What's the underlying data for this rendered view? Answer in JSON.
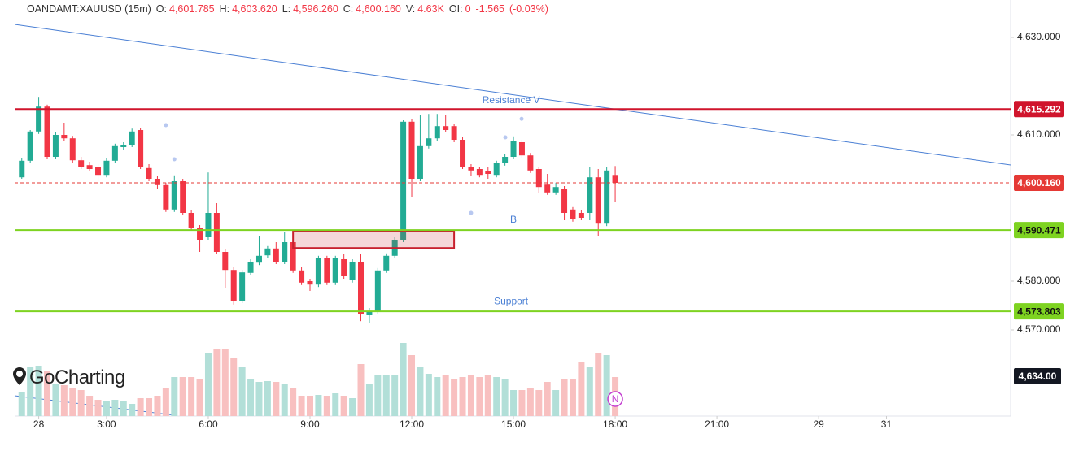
{
  "header": {
    "symbol": "OANDAMT:XAUUSD (15m)",
    "fields": [
      {
        "label": "O:",
        "value": "4,601.785"
      },
      {
        "label": "H:",
        "value": "4,603.620"
      },
      {
        "label": "L:",
        "value": "4,596.260"
      },
      {
        "label": "C:",
        "value": "4,600.160"
      },
      {
        "label": "V:",
        "value": "4.63K"
      },
      {
        "label": "OI:",
        "value": "0"
      }
    ],
    "change": "-1.565",
    "change_pct": "(-0.03%)"
  },
  "logo": "GoCharting",
  "chart_data": {
    "type": "candlestick",
    "x": [
      0.5,
      0.75,
      1,
      1.25,
      1.5,
      1.75,
      2,
      2.25,
      2.5,
      2.75,
      3,
      3.25,
      3.5,
      3.75,
      4,
      4.25,
      4.5,
      4.75,
      5,
      5.25,
      5.5,
      5.75,
      6,
      6.25,
      6.5,
      6.75,
      7,
      7.25,
      7.5,
      7.75,
      8,
      8.25,
      8.5,
      8.75,
      9,
      9.25,
      9.5,
      9.75,
      10,
      10.25,
      10.5,
      10.75,
      11,
      11.25,
      11.5,
      11.75,
      12,
      12.25,
      12.5,
      12.75,
      13,
      13.25,
      13.5,
      13.75,
      14,
      14.25,
      14.5,
      14.75,
      15,
      15.25,
      15.5,
      15.75,
      16,
      16.25,
      16.5,
      16.75,
      17,
      17.25,
      17.5,
      17.75,
      18
    ],
    "open": [
      4601.3,
      4604.7,
      4610.7,
      4615.8,
      4605.5,
      4610.0,
      4609.3,
      4604.8,
      4603.8,
      4603.5,
      4601.8,
      4604.7,
      4607.5,
      4608.0,
      4611.0,
      4603.2,
      4601.0,
      4599.7,
      4594.7,
      4600.5,
      4594.0,
      4591.0,
      4589.0,
      4594.0,
      4586.0,
      4582.3,
      4576.0,
      4581.7,
      4583.8,
      4585.3,
      4586.7,
      4584.0,
      4588.0,
      4582.2,
      4580.0,
      4579.3,
      4584.7,
      4579.7,
      4584.5,
      4580.2,
      4584.0,
      4573.0,
      4573.8,
      4582.2,
      4585.2,
      4588.5,
      4612.7,
      4601.0,
      4607.7,
      4609.3,
      4611.8,
      4611.8,
      4609.0,
      4603.5,
      4603.0,
      4602.5,
      4601.8,
      4604.2,
      4605.5,
      4608.5,
      4605.8,
      4603.0,
      4599.8,
      4598.2,
      4599.0,
      4594.7,
      4594.0,
      4594.0,
      4601.3,
      4591.8,
      4601.785
    ],
    "high": [
      4605.2,
      4611.0,
      4617.8,
      4616.2,
      4610.5,
      4612.5,
      4609.8,
      4605.5,
      4604.5,
      4604.0,
      4605.2,
      4608.2,
      4608.5,
      4611.3,
      4611.5,
      4604.0,
      4601.5,
      4600.2,
      4601.7,
      4601.0,
      4594.5,
      4591.5,
      4602.3,
      4596.0,
      4586.5,
      4583.0,
      4582.3,
      4584.5,
      4589.3,
      4587.2,
      4588.0,
      4590.0,
      4589.5,
      4583.0,
      4580.5,
      4585.2,
      4585.2,
      4585.2,
      4585.5,
      4584.5,
      4585.5,
      4574.5,
      4582.7,
      4585.7,
      4589.0,
      4613.0,
      4613.2,
      4614.0,
      4614.3,
      4614.3,
      4614.0,
      4612.3,
      4609.5,
      4604.0,
      4603.5,
      4603.5,
      4604.7,
      4606.0,
      4609.7,
      4609.0,
      4606.3,
      4603.5,
      4602.0,
      4600.2,
      4599.5,
      4595.2,
      4594.5,
      4603.5,
      4603.0,
      4603.5,
      4603.62
    ],
    "low": [
      4601.0,
      4604.2,
      4610.2,
      4605.0,
      4605.0,
      4608.8,
      4604.3,
      4603.0,
      4602.5,
      4600.5,
      4601.3,
      4604.2,
      4607.0,
      4607.5,
      4603.0,
      4600.5,
      4599.0,
      4594.2,
      4594.2,
      4593.5,
      4590.5,
      4586.0,
      4588.5,
      4585.5,
      4578.5,
      4575.2,
      4575.5,
      4581.2,
      4583.3,
      4584.8,
      4583.5,
      4583.5,
      4581.7,
      4579.2,
      4578.0,
      4578.8,
      4579.2,
      4579.2,
      4580.5,
      4579.7,
      4571.8,
      4571.5,
      4573.3,
      4581.7,
      4584.7,
      4588.0,
      4597.2,
      4600.5,
      4607.2,
      4608.8,
      4610.5,
      4608.5,
      4603.0,
      4601.5,
      4601.3,
      4601.0,
      4601.3,
      4603.7,
      4605.0,
      4605.3,
      4602.2,
      4598.0,
      4597.7,
      4597.7,
      4592.5,
      4592.2,
      4592.5,
      4592.5,
      4589.3,
      4591.3,
      4596.26
    ],
    "close": [
      4604.7,
      4610.7,
      4615.8,
      4605.5,
      4610.0,
      4609.3,
      4604.8,
      4603.5,
      4603.0,
      4601.8,
      4604.7,
      4607.7,
      4608.0,
      4610.7,
      4603.5,
      4601.0,
      4599.7,
      4594.7,
      4600.5,
      4594.0,
      4591.0,
      4588.5,
      4594.0,
      4586.0,
      4582.3,
      4576.0,
      4581.8,
      4584.0,
      4585.2,
      4586.7,
      4584.0,
      4588.0,
      4582.2,
      4579.7,
      4579.3,
      4584.7,
      4579.7,
      4584.7,
      4581.0,
      4584.0,
      4573.2,
      4573.8,
      4582.2,
      4585.2,
      4588.5,
      4612.7,
      4601.0,
      4607.7,
      4609.3,
      4611.8,
      4611.0,
      4609.0,
      4603.5,
      4602.7,
      4601.8,
      4602.0,
      4604.2,
      4605.5,
      4608.8,
      4605.8,
      4602.7,
      4599.3,
      4598.2,
      4599.3,
      4594.0,
      4592.7,
      4593.0,
      4601.3,
      4591.8,
      4602.7,
      4600.16
    ],
    "volume": [
      30,
      60,
      62,
      55,
      40,
      38,
      35,
      32,
      25,
      20,
      18,
      20,
      18,
      15,
      22,
      22,
      25,
      35,
      48,
      48,
      48,
      46,
      78,
      82,
      82,
      72,
      60,
      45,
      42,
      43,
      42,
      40,
      35,
      25,
      25,
      26,
      25,
      28,
      25,
      22,
      64,
      40,
      50,
      50,
      50,
      90,
      75,
      60,
      52,
      48,
      50,
      45,
      48,
      50,
      48,
      50,
      48,
      45,
      32,
      32,
      34,
      32,
      42,
      32,
      45,
      45,
      66,
      60,
      78,
      75,
      48
    ],
    "vlim": [
      0,
      100
    ],
    "up_color": "#22ab94",
    "down_color": "#f23645",
    "volume_up_color": "#b2dfd8",
    "volume_down_color": "#f8c0c0",
    "xlim": [
      0.29,
      29.66
    ],
    "xticks": [
      {
        "value": 1,
        "label": "28"
      },
      {
        "value": 3,
        "label": "3:00"
      },
      {
        "value": 6,
        "label": "6:00"
      },
      {
        "value": 9,
        "label": "9:00"
      },
      {
        "value": 12,
        "label": "12:00"
      },
      {
        "value": 15,
        "label": "15:00"
      },
      {
        "value": 18,
        "label": "18:00"
      },
      {
        "value": 21,
        "label": "21:00"
      },
      {
        "value": 24,
        "label": "29"
      },
      {
        "value": 26,
        "label": "31"
      }
    ],
    "ylim": [
      4552.33,
      4637.67
    ],
    "yticks": [
      {
        "value": 4630,
        "label": "4,630.000"
      },
      {
        "value": 4610,
        "label": "4,610.000"
      },
      {
        "value": 4580,
        "label": "4,580.000"
      },
      {
        "value": 4570,
        "label": "4,570.000"
      }
    ],
    "price_lines": [
      {
        "value": 4615.292,
        "label": "4,615.292",
        "color": "#d0142c",
        "dashed": false
      },
      {
        "value": 4600.16,
        "label": "4,600.160",
        "color": "#e53935",
        "dashed": true
      },
      {
        "value": 4590.471,
        "label": "4,590.471",
        "color": "#7ed321",
        "dashed": false
      },
      {
        "value": 4573.803,
        "label": "4,573.803",
        "color": "#7ed321",
        "dashed": false
      }
    ],
    "trendlines": [
      {
        "x": [
          0.29,
          29.66
        ],
        "y": [
          4632.67,
          4603.83
        ],
        "color": "#4a7fd4"
      }
    ],
    "zones": [
      {
        "x": [
          8.5,
          13.25
        ],
        "y": [
          4590.2,
          4586.8
        ],
        "color": "#c8202e"
      }
    ],
    "markers": {
      "x": [
        4.75,
        5.0,
        13.75,
        14.76,
        15.24
      ],
      "y": [
        4612.0,
        4605.0,
        4594.0,
        4609.5,
        4613.3
      ],
      "color": "#b8c8f0"
    },
    "annotations": [
      {
        "text": "Resistance V",
        "x": 14.93,
        "y": 4617.0
      },
      {
        "text": "B",
        "x": 15.0,
        "y": 4592.5
      },
      {
        "text": "Support",
        "x": 14.93,
        "y": 4575.8
      }
    ],
    "annotation_color": "#4a7fd4",
    "volume_label": "4,634.00",
    "news_marker": {
      "text": "N",
      "x": 18
    }
  }
}
